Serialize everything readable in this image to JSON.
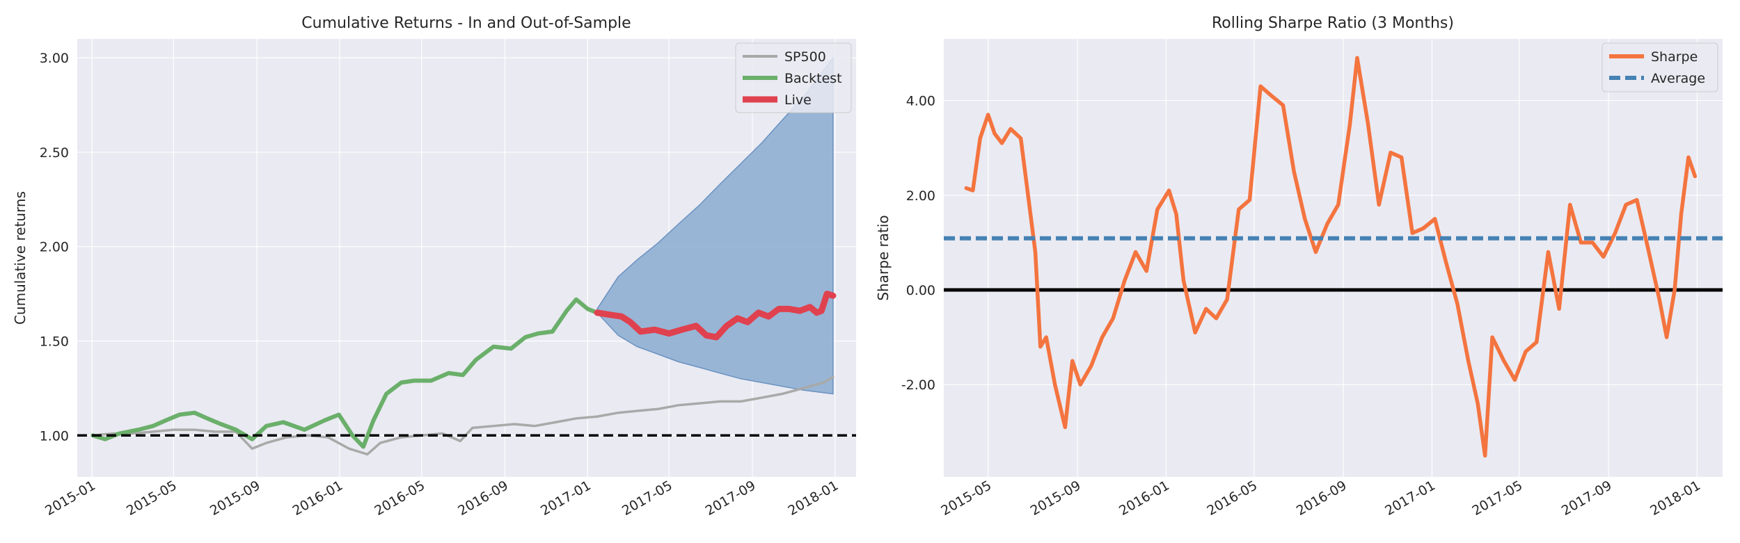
{
  "charts": [
    {
      "title": "Cumulative Returns - In and Out-of-Sample",
      "ylabel": "Cumulative returns",
      "yticks": [
        "1.00",
        "1.50",
        "2.00",
        "2.50",
        "3.00"
      ],
      "xticks": [
        "2015-01",
        "2015-05",
        "2015-09",
        "2016-01",
        "2016-05",
        "2016-09",
        "2017-01",
        "2017-05",
        "2017-09",
        "2018-01"
      ],
      "legend": [
        "SP500",
        "Backtest",
        "Live"
      ]
    },
    {
      "title": "Rolling Sharpe Ratio (3 Months)",
      "ylabel": "Sharpe ratio",
      "yticks": [
        "-2.00",
        "0.00",
        "2.00",
        "4.00"
      ],
      "xticks": [
        "2015-05",
        "2015-09",
        "2016-01",
        "2016-05",
        "2016-09",
        "2017-01",
        "2017-05",
        "2017-09",
        "2018-01"
      ],
      "legend": [
        "Sharpe",
        "Average"
      ]
    }
  ],
  "colors": {
    "axes_bg": "#EAEAF2",
    "grid": "#FFFFFF",
    "sp500": "#A9A9A9",
    "backtest": "#6AAF6A",
    "live": "#E0414F",
    "cone": "#8FAFD2",
    "cone_edge": "#6A92C2",
    "sharpe": "#F4743F",
    "average": "#4682B4",
    "zero": "#000000"
  },
  "chart_data": [
    {
      "type": "line",
      "title": "Cumulative Returns - In and Out-of-Sample",
      "ylabel": "Cumulative returns",
      "ylim": [
        0.78,
        3.1
      ],
      "xlim": [
        "2014-12-10",
        "2018-02-01"
      ],
      "grid": true,
      "legend_position": "top-right",
      "hline": 1.0,
      "series": [
        {
          "name": "SP500",
          "x": [
            "2015-01-02",
            "2015-02-01",
            "2015-03-01",
            "2015-04-01",
            "2015-05-01",
            "2015-06-01",
            "2015-07-01",
            "2015-08-01",
            "2015-08-25",
            "2015-09-15",
            "2015-10-15",
            "2015-11-15",
            "2015-12-15",
            "2016-01-15",
            "2016-02-11",
            "2016-03-01",
            "2016-04-01",
            "2016-05-01",
            "2016-06-01",
            "2016-06-27",
            "2016-07-15",
            "2016-08-15",
            "2016-09-15",
            "2016-10-15",
            "2016-11-15",
            "2016-12-15",
            "2017-01-15",
            "2017-02-15",
            "2017-03-15",
            "2017-04-15",
            "2017-05-15",
            "2017-06-15",
            "2017-07-15",
            "2017-08-15",
            "2017-09-15",
            "2017-10-15",
            "2017-11-15",
            "2017-12-15",
            "2017-12-29"
          ],
          "values": [
            1.0,
            1.01,
            1.01,
            1.02,
            1.03,
            1.03,
            1.02,
            1.02,
            0.93,
            0.96,
            0.99,
            1.0,
            0.99,
            0.93,
            0.9,
            0.96,
            0.99,
            1.0,
            1.01,
            0.97,
            1.04,
            1.05,
            1.06,
            1.05,
            1.07,
            1.09,
            1.1,
            1.12,
            1.13,
            1.14,
            1.16,
            1.17,
            1.18,
            1.18,
            1.2,
            1.22,
            1.25,
            1.28,
            1.31
          ]
        },
        {
          "name": "Backtest",
          "x": [
            "2015-01-02",
            "2015-01-20",
            "2015-02-10",
            "2015-03-10",
            "2015-04-01",
            "2015-04-20",
            "2015-05-10",
            "2015-06-01",
            "2015-06-20",
            "2015-07-10",
            "2015-08-01",
            "2015-08-25",
            "2015-09-15",
            "2015-10-10",
            "2015-11-10",
            "2015-12-10",
            "2015-12-31",
            "2016-01-20",
            "2016-02-05",
            "2016-02-20",
            "2016-03-10",
            "2016-04-01",
            "2016-04-20",
            "2016-05-15",
            "2016-06-10",
            "2016-07-01",
            "2016-07-20",
            "2016-08-15",
            "2016-09-10",
            "2016-10-01",
            "2016-10-20",
            "2016-11-10",
            "2016-12-01",
            "2016-12-15",
            "2017-01-01",
            "2017-01-15"
          ],
          "values": [
            1.0,
            0.98,
            1.01,
            1.03,
            1.05,
            1.08,
            1.11,
            1.12,
            1.09,
            1.06,
            1.03,
            0.98,
            1.05,
            1.07,
            1.03,
            1.08,
            1.11,
            1.0,
            0.94,
            1.08,
            1.22,
            1.28,
            1.29,
            1.29,
            1.33,
            1.32,
            1.4,
            1.47,
            1.46,
            1.52,
            1.54,
            1.55,
            1.66,
            1.72,
            1.67,
            1.65
          ]
        },
        {
          "name": "Live",
          "x": [
            "2017-01-15",
            "2017-02-01",
            "2017-02-20",
            "2017-03-05",
            "2017-03-20",
            "2017-04-10",
            "2017-05-01",
            "2017-05-20",
            "2017-06-10",
            "2017-06-25",
            "2017-07-10",
            "2017-07-25",
            "2017-08-10",
            "2017-08-25",
            "2017-09-10",
            "2017-09-25",
            "2017-10-10",
            "2017-10-25",
            "2017-11-10",
            "2017-11-25",
            "2017-12-05",
            "2017-12-12",
            "2017-12-20",
            "2017-12-29"
          ],
          "values": [
            1.65,
            1.64,
            1.63,
            1.6,
            1.55,
            1.56,
            1.54,
            1.56,
            1.58,
            1.53,
            1.52,
            1.58,
            1.62,
            1.6,
            1.65,
            1.63,
            1.67,
            1.67,
            1.66,
            1.68,
            1.65,
            1.66,
            1.75,
            1.74
          ]
        }
      ],
      "cone": {
        "x": [
          "2017-01-15",
          "2017-02-15",
          "2017-03-15",
          "2017-04-15",
          "2017-05-15",
          "2017-06-15",
          "2017-07-15",
          "2017-08-15",
          "2017-09-15",
          "2017-10-15",
          "2017-11-15",
          "2017-12-29"
        ],
        "upper": [
          1.67,
          1.84,
          1.93,
          2.02,
          2.12,
          2.22,
          2.33,
          2.44,
          2.55,
          2.67,
          2.79,
          3.0
        ],
        "lower": [
          1.65,
          1.53,
          1.47,
          1.43,
          1.39,
          1.36,
          1.33,
          1.3,
          1.28,
          1.26,
          1.24,
          1.22
        ]
      }
    },
    {
      "type": "line",
      "title": "Rolling Sharpe Ratio (3 Months)",
      "ylabel": "Sharpe ratio",
      "ylim": [
        -3.95,
        5.3
      ],
      "xlim": [
        "2015-03-01",
        "2018-02-05"
      ],
      "grid": true,
      "legend_position": "top-right",
      "hline": 0.0,
      "series": [
        {
          "name": "Sharpe",
          "x": [
            "2015-04-01",
            "2015-04-10",
            "2015-04-20",
            "2015-05-01",
            "2015-05-10",
            "2015-05-20",
            "2015-06-01",
            "2015-06-15",
            "2015-06-25",
            "2015-07-05",
            "2015-07-12",
            "2015-07-20",
            "2015-08-01",
            "2015-08-15",
            "2015-08-25",
            "2015-09-05",
            "2015-09-20",
            "2015-10-05",
            "2015-10-20",
            "2015-11-05",
            "2015-11-20",
            "2015-12-05",
            "2015-12-20",
            "2016-01-05",
            "2016-01-15",
            "2016-01-25",
            "2016-02-10",
            "2016-02-25",
            "2016-03-10",
            "2016-03-25",
            "2016-04-10",
            "2016-04-25",
            "2016-05-10",
            "2016-05-25",
            "2016-06-10",
            "2016-06-25",
            "2016-07-10",
            "2016-07-25",
            "2016-08-10",
            "2016-08-25",
            "2016-09-10",
            "2016-09-20",
            "2016-10-05",
            "2016-10-20",
            "2016-11-05",
            "2016-11-20",
            "2016-12-05",
            "2016-12-20",
            "2017-01-05",
            "2017-01-20",
            "2017-02-05",
            "2017-02-20",
            "2017-03-05",
            "2017-03-15",
            "2017-03-25",
            "2017-04-10",
            "2017-04-25",
            "2017-05-10",
            "2017-05-25",
            "2017-06-10",
            "2017-06-25",
            "2017-07-10",
            "2017-07-25",
            "2017-08-10",
            "2017-08-25",
            "2017-09-10",
            "2017-09-25",
            "2017-10-10",
            "2017-10-25",
            "2017-11-10",
            "2017-11-20",
            "2017-12-01",
            "2017-12-10",
            "2017-12-20",
            "2017-12-29"
          ],
          "values": [
            2.15,
            2.1,
            3.2,
            3.7,
            3.3,
            3.1,
            3.4,
            3.2,
            2.0,
            0.8,
            -1.2,
            -1.0,
            -2.0,
            -2.9,
            -1.5,
            -2.0,
            -1.6,
            -1.0,
            -0.6,
            0.2,
            0.8,
            0.4,
            1.7,
            2.1,
            1.6,
            0.2,
            -0.9,
            -0.4,
            -0.6,
            -0.2,
            1.7,
            1.9,
            4.3,
            4.1,
            3.9,
            2.5,
            1.5,
            0.8,
            1.4,
            1.8,
            3.5,
            4.9,
            3.5,
            1.8,
            2.9,
            2.8,
            1.2,
            1.3,
            1.5,
            0.6,
            -0.3,
            -1.5,
            -2.4,
            -3.5,
            -1.0,
            -1.5,
            -1.9,
            -1.3,
            -1.1,
            0.8,
            -0.4,
            1.8,
            1.0,
            1.0,
            0.7,
            1.2,
            1.8,
            1.9,
            0.9,
            -0.2,
            -1.0,
            0.0,
            1.6,
            2.8,
            2.4
          ]
        },
        {
          "name": "Average",
          "x": [
            "2015-03-01",
            "2018-02-05"
          ],
          "values": [
            1.09,
            1.09
          ]
        }
      ]
    }
  ]
}
